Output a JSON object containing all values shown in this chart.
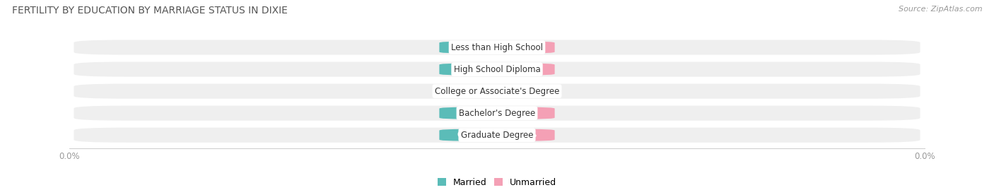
{
  "title": "FERTILITY BY EDUCATION BY MARRIAGE STATUS IN DIXIE",
  "source": "Source: ZipAtlas.com",
  "categories": [
    "Less than High School",
    "High School Diploma",
    "College or Associate's Degree",
    "Bachelor's Degree",
    "Graduate Degree"
  ],
  "married_values": [
    0.0,
    0.0,
    0.0,
    0.0,
    0.0
  ],
  "unmarried_values": [
    0.0,
    0.0,
    0.0,
    0.0,
    0.0
  ],
  "married_color": "#5bbcb8",
  "unmarried_color": "#f4a0b5",
  "row_bg_color": "#efefef",
  "title_color": "#555555",
  "label_color": "#333333",
  "axis_label_color": "#999999",
  "legend_married": "Married",
  "legend_unmarried": "Unmarried",
  "bar_height": 0.68,
  "figsize": [
    14.06,
    2.69
  ],
  "dpi": 100
}
